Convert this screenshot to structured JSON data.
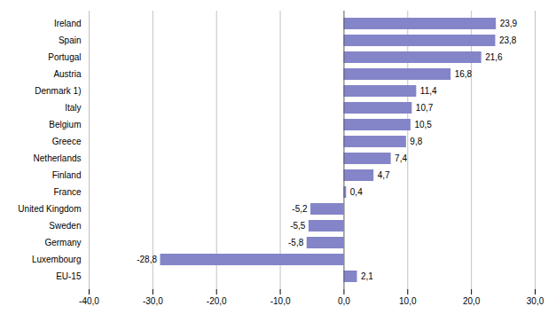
{
  "chart_data": {
    "type": "bar",
    "orientation": "horizontal",
    "categories": [
      "Ireland",
      "Spain",
      "Portugal",
      "Austria",
      "Denmark 1)",
      "Italy",
      "Belgium",
      "Greece",
      "Netherlands",
      "Finland",
      "France",
      "United Kingdom",
      "Sweden",
      "Germany",
      "Luxembourg",
      "EU-15"
    ],
    "values": [
      23.9,
      23.8,
      21.6,
      16.8,
      11.4,
      10.7,
      10.5,
      9.8,
      7.4,
      4.7,
      0.4,
      -5.2,
      -5.5,
      -5.8,
      -28.8,
      2.1
    ],
    "value_labels": [
      "23,9",
      "23,8",
      "21,6",
      "16,8",
      "11,4",
      "10,7",
      "10,5",
      "9,8",
      "7,4",
      "4,7",
      "0,4",
      "-5,2",
      "-5,5",
      "-5,8",
      "-28,8",
      "2,1"
    ],
    "data_labels": true,
    "color": "#8484C8",
    "xlim": [
      -40,
      30
    ],
    "xticks": [
      {
        "value": -40,
        "label": "-40,0"
      },
      {
        "value": -30,
        "label": "-30,0"
      },
      {
        "value": -20,
        "label": "-20,0"
      },
      {
        "value": -10,
        "label": "-10,0"
      },
      {
        "value": 0,
        "label": "0,0"
      },
      {
        "value": 10,
        "label": "10,0"
      },
      {
        "value": 20,
        "label": "20,0"
      },
      {
        "value": 30,
        "label": "30,0"
      }
    ],
    "grid": true
  }
}
